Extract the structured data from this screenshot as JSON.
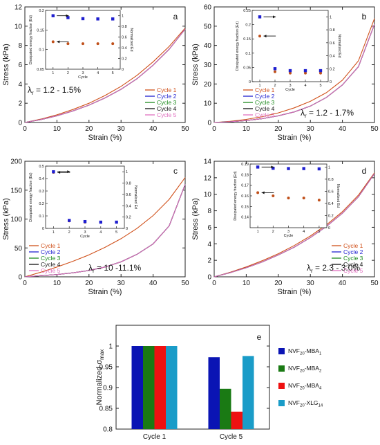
{
  "chart_data": [
    {
      "panel": "a",
      "type": "line",
      "xlabel": "Strain (%)",
      "ylabel": "Stress (kPa)",
      "xlim": [
        0,
        50
      ],
      "ylim": [
        0,
        12
      ],
      "xticks": [
        0,
        10,
        20,
        30,
        40,
        50
      ],
      "yticks": [
        0,
        2,
        4,
        6,
        8,
        10,
        12
      ],
      "annotation_symbol": "λ",
      "annotation_subscript": "r",
      "annotation_text": " = 1.2 - 1.5%",
      "legend_position": "bottom-right",
      "series": [
        {
          "name": "Cycle 1",
          "color": "#d0501a",
          "x": [
            0,
            5,
            10,
            15,
            20,
            25,
            30,
            35,
            40,
            45,
            50
          ],
          "y": [
            0,
            0.35,
            0.8,
            1.35,
            2.0,
            2.8,
            3.75,
            4.9,
            6.3,
            7.9,
            9.8
          ]
        },
        {
          "name": "Cycle 2",
          "color": "#1f1fcf",
          "x": [
            0,
            5,
            10,
            15,
            20,
            25,
            30,
            35,
            40,
            45,
            50
          ],
          "y": [
            0,
            0.3,
            0.7,
            1.2,
            1.8,
            2.55,
            3.45,
            4.55,
            5.95,
            7.6,
            9.7
          ]
        },
        {
          "name": "Cycle 3",
          "color": "#1c8a1c",
          "x": [
            0,
            5,
            10,
            15,
            20,
            25,
            30,
            35,
            40,
            45,
            50
          ],
          "y": [
            0,
            0.3,
            0.7,
            1.2,
            1.8,
            2.55,
            3.45,
            4.55,
            5.95,
            7.6,
            9.7
          ]
        },
        {
          "name": "Cycle 4",
          "color": "#111111",
          "x": [
            0,
            5,
            10,
            15,
            20,
            25,
            30,
            35,
            40,
            45,
            50
          ],
          "y": [
            0,
            0.3,
            0.7,
            1.2,
            1.8,
            2.55,
            3.45,
            4.55,
            5.95,
            7.6,
            9.7
          ]
        },
        {
          "name": "Cycle 5",
          "color": "#e070c0",
          "x": [
            0,
            5,
            10,
            15,
            20,
            25,
            30,
            35,
            40,
            45,
            50
          ],
          "y": [
            0,
            0.3,
            0.7,
            1.2,
            1.8,
            2.55,
            3.45,
            4.55,
            5.95,
            7.6,
            9.7
          ]
        }
      ],
      "inset": {
        "type": "scatter",
        "xlabel": "Cycle",
        "ylabel_left": "Dissipated energy fraction (Ed)",
        "ylabel_right": "Normalized Ed",
        "xlim": [
          0.5,
          5.5
        ],
        "xticks": [
          1,
          2,
          3,
          4,
          5
        ],
        "left_ylim": [
          0.05,
          0.2
        ],
        "left_yticks": [
          0.05,
          0.1,
          0.15,
          0.2
        ],
        "left_ytick_labels": [
          "0.05",
          "0.1",
          "0.15",
          "0.2"
        ],
        "right_ylim": [
          0,
          1.1
        ],
        "right_yticks": [
          0,
          0.2,
          0.4,
          0.6,
          0.8,
          1
        ],
        "right_ytick_labels": [
          "0",
          "0.2",
          "0.4",
          "0.6",
          "0.8",
          "1"
        ],
        "left_series": {
          "color": "#c0501a",
          "x": [
            1,
            2,
            3,
            4,
            5
          ],
          "y": [
            0.12,
            0.115,
            0.115,
            0.115,
            0.115
          ]
        },
        "right_series": {
          "color": "#1f1fcf",
          "x": [
            1,
            2,
            3,
            4,
            5
          ],
          "y": [
            1.0,
            0.965,
            0.945,
            0.94,
            0.94
          ]
        }
      }
    },
    {
      "panel": "b",
      "type": "line",
      "xlabel": "Strain (%)",
      "ylabel": "Stress (kPa)",
      "xlim": [
        0,
        50
      ],
      "ylim": [
        0,
        60
      ],
      "xticks": [
        0,
        10,
        20,
        30,
        40,
        50
      ],
      "yticks": [
        0,
        10,
        20,
        30,
        40,
        50,
        60
      ],
      "annotation_symbol": "λ",
      "annotation_subscript": "r",
      "annotation_text": " = 1.2 - 1.7%",
      "legend_position": "bottom-left",
      "series": [
        {
          "name": "Cycle 1",
          "color": "#d0501a",
          "x": [
            0,
            5,
            10,
            15,
            20,
            25,
            30,
            35,
            40,
            45,
            50
          ],
          "y": [
            0,
            0.6,
            1.6,
            3.0,
            5.0,
            7.6,
            11.0,
            15.5,
            22.0,
            32.0,
            54.0
          ]
        },
        {
          "name": "Cycle 2",
          "color": "#1f1fcf",
          "x": [
            0,
            5,
            10,
            15,
            20,
            25,
            30,
            35,
            40,
            45,
            50
          ],
          "y": [
            0,
            0.4,
            1.0,
            2.0,
            3.5,
            5.5,
            8.5,
            13.0,
            19.5,
            29.0,
            51.0
          ]
        },
        {
          "name": "Cycle 3",
          "color": "#1c8a1c",
          "x": [
            0,
            5,
            10,
            15,
            20,
            25,
            30,
            35,
            40,
            45,
            50
          ],
          "y": [
            0,
            0.4,
            1.0,
            2.0,
            3.5,
            5.5,
            8.5,
            13.0,
            19.5,
            29.0,
            51.0
          ]
        },
        {
          "name": "Cycle 4",
          "color": "#111111",
          "x": [
            0,
            5,
            10,
            15,
            20,
            25,
            30,
            35,
            40,
            45,
            50
          ],
          "y": [
            0,
            0.4,
            1.0,
            2.0,
            3.5,
            5.5,
            8.5,
            13.0,
            19.5,
            29.0,
            51.0
          ]
        },
        {
          "name": "Cycle 5",
          "color": "#e070c0",
          "x": [
            0,
            5,
            10,
            15,
            20,
            25,
            30,
            35,
            40,
            45,
            50
          ],
          "y": [
            0,
            0.4,
            1.0,
            2.0,
            3.5,
            5.5,
            8.5,
            13.0,
            19.5,
            29.0,
            51.0
          ]
        }
      ],
      "inset": {
        "type": "scatter",
        "xlabel": "Cycle",
        "ylabel_left": "Dissipated energy fraction (Ed)",
        "ylabel_right": "Normalized Ed",
        "xlim": [
          0.5,
          5.5
        ],
        "xticks": [
          1,
          2,
          3,
          4,
          5
        ],
        "left_ylim": [
          0,
          0.25
        ],
        "left_yticks": [
          0,
          0.05,
          0.1,
          0.15,
          0.2,
          0.25
        ],
        "left_ytick_labels": [
          "0",
          "0.05",
          "0.1",
          "0.15",
          "0.2",
          "0.25"
        ],
        "right_ylim": [
          0,
          1.1
        ],
        "right_yticks": [
          0,
          0.2,
          0.4,
          0.6,
          0.8,
          1
        ],
        "right_ytick_labels": [
          "0",
          "0.2",
          "0.4",
          "0.6",
          "0.8",
          "1"
        ],
        "left_series": {
          "color": "#c0501a",
          "x": [
            1,
            2,
            3,
            4,
            5
          ],
          "y": [
            0.16,
            0.035,
            0.03,
            0.03,
            0.03
          ]
        },
        "right_series": {
          "color": "#1f1fcf",
          "x": [
            1,
            2,
            3,
            4,
            5
          ],
          "y": [
            1.0,
            0.2,
            0.17,
            0.17,
            0.17
          ]
        }
      }
    },
    {
      "panel": "c",
      "type": "line",
      "xlabel": "Strain (%)",
      "ylabel": "Stress (kPa)",
      "xlim": [
        0,
        50
      ],
      "ylim": [
        0,
        200
      ],
      "xticks": [
        0,
        10,
        20,
        30,
        40,
        50
      ],
      "yticks": [
        0,
        50,
        100,
        150,
        200
      ],
      "annotation_symbol": "λ",
      "annotation_subscript": "r",
      "annotation_text": " = 10 -11.1%",
      "legend_position": "bottom-left",
      "series": [
        {
          "name": "Cycle 1",
          "color": "#d0501a",
          "x": [
            0,
            5,
            10,
            15,
            20,
            25,
            30,
            35,
            40,
            45,
            50
          ],
          "y": [
            0,
            8,
            17,
            27,
            38,
            51,
            66,
            84,
            106,
            134,
            172
          ]
        },
        {
          "name": "Cycle 2",
          "color": "#1f1fcf",
          "x": [
            0,
            5,
            10,
            15,
            20,
            25,
            30,
            35,
            40,
            45,
            50
          ],
          "y": [
            0,
            2,
            4,
            7,
            11,
            17,
            26,
            39,
            57,
            88,
            160
          ]
        },
        {
          "name": "Cycle 3",
          "color": "#1c8a1c",
          "x": [
            0,
            5,
            10,
            15,
            20,
            25,
            30,
            35,
            40,
            45,
            50
          ],
          "y": [
            0,
            2,
            4,
            7,
            11,
            17,
            26,
            39,
            57,
            88,
            160
          ]
        },
        {
          "name": "Cycle 4",
          "color": "#111111",
          "x": [
            0,
            5,
            10,
            15,
            20,
            25,
            30,
            35,
            40,
            45,
            50
          ],
          "y": [
            0,
            2,
            4,
            7,
            11,
            17,
            26,
            39,
            57,
            88,
            160
          ]
        },
        {
          "name": "Cycle 5",
          "color": "#e070c0",
          "x": [
            0,
            5,
            10,
            15,
            20,
            25,
            30,
            35,
            40,
            45,
            50
          ],
          "y": [
            0,
            2,
            4,
            7,
            11,
            17,
            26,
            39,
            57,
            88,
            160
          ]
        }
      ],
      "inset": {
        "type": "scatter",
        "xlabel": "Cycle",
        "ylabel_left": "Dissipated energy fraction (Ed)",
        "ylabel_right": "Normalized Ed",
        "xlim": [
          0.5,
          5.5
        ],
        "xticks": [
          1,
          2,
          3,
          4,
          5
        ],
        "left_ylim": [
          0,
          0.5
        ],
        "left_yticks": [
          0,
          0.1,
          0.2,
          0.3,
          0.4,
          0.5
        ],
        "left_ytick_labels": [
          "0",
          "0.1",
          "0.2",
          "0.3",
          "0.4",
          "0.5"
        ],
        "right_ylim": [
          0,
          1.1
        ],
        "right_yticks": [
          0,
          0.2,
          0.4,
          0.6,
          0.8,
          1
        ],
        "right_ytick_labels": [
          "0",
          "0.2",
          "0.4",
          "0.6",
          "0.8",
          "1"
        ],
        "left_series": {
          "color": "#c0501a",
          "x": [
            1,
            2,
            3,
            4,
            5
          ],
          "y": [
            0.45,
            0.06,
            0.05,
            0.05,
            0.05
          ]
        },
        "right_series": {
          "color": "#1f1fcf",
          "x": [
            1,
            2,
            3,
            4,
            5
          ],
          "y": [
            1.0,
            0.14,
            0.12,
            0.11,
            0.11
          ]
        }
      }
    },
    {
      "panel": "d",
      "type": "line",
      "xlabel": "Strain (%)",
      "ylabel": "Stress (kPa)",
      "xlim": [
        0,
        50
      ],
      "ylim": [
        0,
        14
      ],
      "xticks": [
        0,
        10,
        20,
        30,
        40,
        50
      ],
      "yticks": [
        0,
        2,
        4,
        6,
        8,
        10,
        12,
        14
      ],
      "annotation_symbol": "λ",
      "annotation_subscript": "r",
      "annotation_text": " = 2.3 - 3.0%",
      "legend_position": "bottom-right",
      "series": [
        {
          "name": "Cycle 1",
          "color": "#d0501a",
          "x": [
            0,
            5,
            10,
            15,
            20,
            25,
            30,
            35,
            40,
            45,
            50
          ],
          "y": [
            0,
            0.55,
            1.2,
            1.95,
            2.8,
            3.8,
            4.95,
            6.3,
            7.9,
            9.9,
            12.6
          ]
        },
        {
          "name": "Cycle 2",
          "color": "#1f1fcf",
          "x": [
            0,
            5,
            10,
            15,
            20,
            25,
            30,
            35,
            40,
            45,
            50
          ],
          "y": [
            0,
            0.5,
            1.1,
            1.8,
            2.65,
            3.6,
            4.75,
            6.1,
            7.7,
            9.7,
            12.5
          ]
        },
        {
          "name": "Cycle 3",
          "color": "#1c8a1c",
          "x": [
            0,
            5,
            10,
            15,
            20,
            25,
            30,
            35,
            40,
            45,
            50
          ],
          "y": [
            0,
            0.5,
            1.1,
            1.8,
            2.65,
            3.6,
            4.75,
            6.1,
            7.7,
            9.7,
            12.5
          ]
        },
        {
          "name": "Cycle 4",
          "color": "#111111",
          "x": [
            0,
            5,
            10,
            15,
            20,
            25,
            30,
            35,
            40,
            45,
            50
          ],
          "y": [
            0,
            0.5,
            1.1,
            1.8,
            2.65,
            3.6,
            4.75,
            6.1,
            7.7,
            9.7,
            12.5
          ]
        },
        {
          "name": "Cycle 5",
          "color": "#e070c0",
          "x": [
            0,
            5,
            10,
            15,
            20,
            25,
            30,
            35,
            40,
            45,
            50
          ],
          "y": [
            0,
            0.5,
            1.1,
            1.8,
            2.65,
            3.6,
            4.75,
            6.1,
            7.7,
            9.7,
            12.5
          ]
        }
      ],
      "inset": {
        "type": "scatter",
        "xlabel": "Cycle",
        "ylabel_left": "Dissipated energy fraction (Ed)",
        "ylabel_right": "Normalized Ed",
        "xlim": [
          0.5,
          5.5
        ],
        "xticks": [
          1,
          2,
          3,
          4,
          5
        ],
        "left_ylim": [
          0.13,
          0.19
        ],
        "left_yticks": [
          0.14,
          0.15,
          0.16,
          0.17,
          0.18,
          0.19
        ],
        "left_ytick_labels": [
          "0.14",
          "0.15",
          "0.16",
          "0.17",
          "0.18",
          "0.19"
        ],
        "right_ylim": [
          0,
          1.05
        ],
        "right_yticks": [
          0,
          0.2,
          0.4,
          0.6,
          0.8,
          1
        ],
        "right_ytick_labels": [
          "0",
          "0.2",
          "0.4",
          "0.6",
          "0.8",
          "1"
        ],
        "left_series": {
          "color": "#c0501a",
          "x": [
            1,
            2,
            3,
            4,
            5
          ],
          "y": [
            0.163,
            0.16,
            0.158,
            0.158,
            0.156
          ]
        },
        "right_series": {
          "color": "#1f1fcf",
          "x": [
            1,
            2,
            3,
            4,
            5
          ],
          "y": [
            1.0,
            0.98,
            0.975,
            0.975,
            0.97
          ]
        }
      }
    },
    {
      "panel": "e",
      "type": "bar",
      "ylabel": "Normalized σ",
      "ylabel_subscript": "max",
      "categories": [
        "Cycle 1",
        "Cycle 5"
      ],
      "ylim": [
        0.8,
        1.05
      ],
      "yticks": [
        0.8,
        0.85,
        0.9,
        0.95,
        1
      ],
      "ytick_labels": [
        "0.8",
        "0.85",
        "0.9",
        "0.95",
        "1"
      ],
      "legend_position": "right",
      "series": [
        {
          "name_base": "NVF",
          "name_sub1": "20",
          "name_mid": "-MBA",
          "name_sub2": "1",
          "color": "#0a14b4",
          "values": [
            1.0,
            0.973
          ]
        },
        {
          "name_base": "NVF",
          "name_sub1": "20",
          "name_mid": "-MBA",
          "name_sub2": "2",
          "color": "#1a7a14",
          "values": [
            1.0,
            0.897
          ]
        },
        {
          "name_base": "NVF",
          "name_sub1": "20",
          "name_mid": "-MBA",
          "name_sub2": "4",
          "color": "#ee1111",
          "values": [
            1.0,
            0.842
          ]
        },
        {
          "name_base": "NVF",
          "name_sub1": "20",
          "name_mid": "-XLG",
          "name_sub2": "14",
          "color": "#1a9cc8",
          "values": [
            1.0,
            0.976
          ]
        }
      ]
    }
  ]
}
